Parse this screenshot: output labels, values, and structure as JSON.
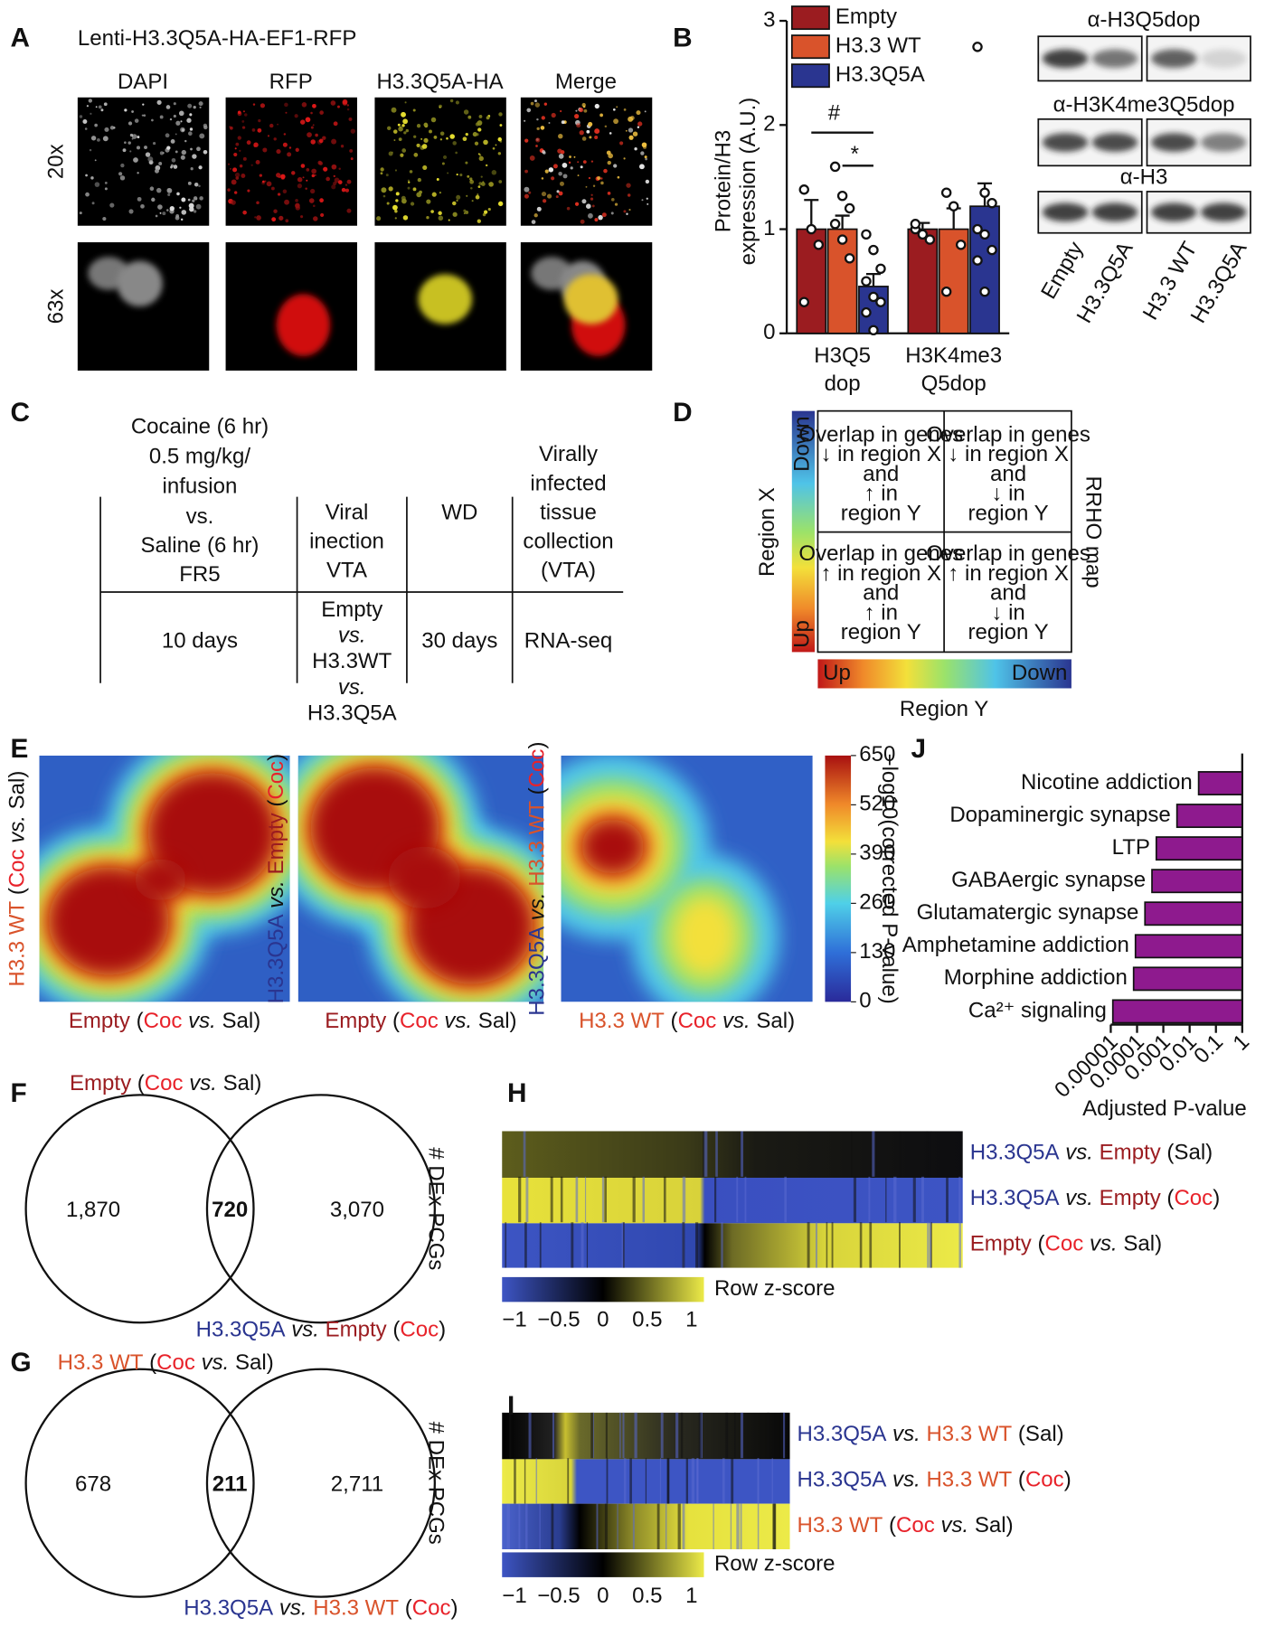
{
  "panel_labels": [
    "A",
    "B",
    "C",
    "D",
    "E",
    "F",
    "G",
    "H",
    "I",
    "J"
  ],
  "panel_a": {
    "title": "Lenti-H3.3Q5A-HA-EF1-RFP",
    "columns": [
      "DAPI",
      "RFP",
      "H3.3Q5A-HA",
      "Merge"
    ],
    "rows": [
      "20x",
      "63x"
    ]
  },
  "chart_data": [
    {
      "type": "bar",
      "orientation": "vertical",
      "ylabel": "Protein/H3\nexpression (A.U.)",
      "categories": [
        "H3Q5\ndop",
        "H3K4me3\nQ5dop"
      ],
      "series": [
        {
          "name": "Empty",
          "color": "#9b1c20",
          "values": [
            1.0,
            1.0
          ],
          "errors": [
            0.28,
            0.06
          ],
          "points": [
            [
              1.38,
              1.0,
              0.85,
              0.3
            ],
            [
              1.0,
              0.95,
              0.9,
              1.05
            ]
          ]
        },
        {
          "name": "H3.3 WT",
          "color": "#d9532b",
          "values": [
            1.0,
            1.0
          ],
          "errors": [
            0.13,
            0.2
          ],
          "points": [
            [
              1.6,
              1.32,
              1.2,
              1.05,
              0.9,
              0.72
            ],
            [
              1.35,
              1.22,
              0.85,
              0.4
            ]
          ]
        },
        {
          "name": "H3.3Q5A",
          "color": "#2a3590",
          "values": [
            0.45,
            1.22
          ],
          "errors": [
            0.12,
            0.22
          ],
          "points": [
            [
              0.95,
              0.8,
              0.62,
              0.5,
              0.35,
              0.3,
              0.2,
              0.03
            ],
            [
              2.75,
              1.35,
              1.25,
              1.0,
              0.95,
              0.8,
              0.7,
              0.4
            ]
          ]
        }
      ],
      "annotations": [
        "#",
        "*"
      ],
      "ylim": [
        0,
        3
      ],
      "yticks": [
        0,
        1,
        2,
        3
      ],
      "legend": "top-left"
    },
    {
      "type": "bar",
      "orientation": "horizontal",
      "xscale": "log",
      "categories": [
        "Nicotine addiction",
        "Dopaminergic synapse",
        "LTP",
        "GABAergic synapse",
        "Glutamatergic synapse",
        "Amphetamine addiction",
        "Morphine addiction",
        "Ca²⁺ signaling"
      ],
      "values": [
        0.022,
        0.0033,
        0.00054,
        0.00037,
        0.0002,
        8.7e-05,
        7.4e-05,
        1.2e-05
      ],
      "color": "#8e1a8e",
      "xlabel": "Adjusted P-value",
      "xlim": [
        1e-05,
        1
      ],
      "xticks": [
        1e-05,
        0.0001,
        0.001,
        0.01,
        0.1,
        1
      ]
    }
  ],
  "blot": {
    "antibodies": [
      "α-H3Q5dop",
      "α-H3K4me3Q5dop",
      "α-H3"
    ],
    "lanes": [
      {
        "text": "Empty",
        "color": "#9b1c20"
      },
      {
        "text": "H3.3Q5A",
        "color": "#2a3590"
      },
      {
        "text": "H3.3 WT",
        "color": "#d9532b"
      },
      {
        "text": "H3.3Q5A",
        "color": "#2a3590"
      }
    ]
  },
  "panel_c": {
    "cocaine": [
      "Cocaine (6 hr)",
      "0.5 mg/kg/",
      "infusion"
    ],
    "saline": [
      "vs.",
      "Saline (6 hr)",
      "FR5"
    ],
    "col2_header": [
      "Viral",
      "inection",
      "VTA"
    ],
    "col3_header": [
      "WD"
    ],
    "col4_header": [
      "Virally",
      "infected",
      "tissue",
      "collection",
      "(VTA)"
    ],
    "row": {
      "col1": "10 days",
      "col2": [
        {
          "text": "Empty",
          "color": "#9b1c20"
        },
        {
          "text": "vs.",
          "italic": true
        },
        {
          "text": "H3.3WT",
          "color": "#d9532b"
        },
        {
          "text": "vs.",
          "italic": true
        },
        {
          "text": "H3.3Q5A",
          "color": "#2a3590"
        }
      ],
      "col3": "30 days",
      "col4": "RNA-seq"
    }
  },
  "panel_d": {
    "axis_x": "Region Y",
    "axis_y": "Region X",
    "side": "RRHO map",
    "bar_x": [
      "Up",
      "Down"
    ],
    "bar_y": [
      "Down",
      "Up"
    ],
    "quadrants": [
      [
        "Overlap in genes",
        "↓ in region X",
        "and",
        "↑ in",
        "region Y"
      ],
      [
        "Overlap in genes",
        "↓ in region X",
        "and",
        "↓ in",
        "region Y"
      ],
      [
        "Overlap in genes",
        "↑ in region X",
        "and",
        "↑ in",
        "region Y"
      ],
      [
        "Overlap in genes",
        "↑ in region X",
        "and",
        "↓ in",
        "region Y"
      ]
    ]
  },
  "panel_e": {
    "maps": [
      {
        "xlabel": [
          {
            "text": "Empty",
            "color": "#9b1c20"
          },
          {
            "text": " ("
          },
          {
            "text": "Coc",
            "color": "#e8222a"
          },
          {
            "text": " vs.",
            "italic": true
          },
          {
            "text": " Sal)"
          }
        ],
        "ylabel": [
          {
            "text": "H3.3 WT",
            "color": "#d9532b"
          },
          {
            "text": " ("
          },
          {
            "text": "Coc",
            "color": "#e8222a"
          },
          {
            "text": " vs.",
            "italic": true
          },
          {
            "text": " Sal)"
          }
        ]
      },
      {
        "xlabel": [
          {
            "text": "Empty",
            "color": "#9b1c20"
          },
          {
            "text": " ("
          },
          {
            "text": "Coc",
            "color": "#e8222a"
          },
          {
            "text": " vs.",
            "italic": true
          },
          {
            "text": " Sal)"
          }
        ],
        "ylabel": [
          {
            "text": "H3.3Q5A",
            "color": "#2a3590"
          },
          {
            "text": " vs.",
            "italic": true
          },
          {
            "text": " Empty",
            "color": "#9b1c20"
          },
          {
            "text": " ("
          },
          {
            "text": "Coc",
            "color": "#e8222a"
          },
          {
            "text": ")"
          }
        ]
      },
      {
        "xlabel": [
          {
            "text": "H3.3 WT",
            "color": "#d9532b"
          },
          {
            "text": " ("
          },
          {
            "text": "Coc",
            "color": "#e8222a"
          },
          {
            "text": " vs.",
            "italic": true
          },
          {
            "text": " Sal)"
          }
        ],
        "ylabel": [
          {
            "text": "H3.3Q5A",
            "color": "#2a3590"
          },
          {
            "text": " vs.",
            "italic": true
          },
          {
            "text": " H3.3 WT",
            "color": "#d9532b"
          },
          {
            "text": " ("
          },
          {
            "text": "Coc",
            "color": "#e8222a"
          },
          {
            "text": ")"
          }
        ]
      }
    ],
    "colorbar": {
      "label": "−log10(corrected P-value)",
      "lim": [
        0,
        650
      ],
      "ticks": [
        0,
        130,
        260,
        390,
        520,
        650
      ]
    }
  },
  "panel_f": {
    "title": [
      {
        "text": "Empty",
        "color": "#9b1c20"
      },
      {
        "text": " ("
      },
      {
        "text": "Coc",
        "color": "#e8222a"
      },
      {
        "text": " vs.",
        "italic": true
      },
      {
        "text": " Sal)"
      }
    ],
    "bottom": [
      {
        "text": "H3.3Q5A",
        "color": "#2a3590"
      },
      {
        "text": " vs.",
        "italic": true
      },
      {
        "text": " Empty",
        "color": "#9b1c20"
      },
      {
        "text": " ("
      },
      {
        "text": "Coc",
        "color": "#e8222a"
      },
      {
        "text": ")"
      }
    ],
    "side": "# DEx PCGs",
    "counts": [
      "1,870",
      "720",
      "3,070"
    ]
  },
  "panel_g": {
    "title": [
      {
        "text": "H3.3 WT",
        "color": "#d9532b"
      },
      {
        "text": " ("
      },
      {
        "text": "Coc",
        "color": "#e8222a"
      },
      {
        "text": " vs.",
        "italic": true
      },
      {
        "text": " Sal)"
      }
    ],
    "bottom": [
      {
        "text": "H3.3Q5A",
        "color": "#2a3590"
      },
      {
        "text": " vs.",
        "italic": true
      },
      {
        "text": " H3.3 WT",
        "color": "#d9532b"
      },
      {
        "text": " ("
      },
      {
        "text": "Coc",
        "color": "#e8222a"
      },
      {
        "text": ")"
      }
    ],
    "side": "# DEx PCGs",
    "counts": [
      "678",
      "211",
      "2,711"
    ]
  },
  "panel_h": {
    "rows": [
      [
        {
          "text": "H3.3Q5A",
          "color": "#2a3590"
        },
        {
          "text": " vs.",
          "italic": true
        },
        {
          "text": " Empty",
          "color": "#9b1c20"
        },
        {
          "text": " (Sal)"
        }
      ],
      [
        {
          "text": "H3.3Q5A",
          "color": "#2a3590"
        },
        {
          "text": " vs.",
          "italic": true
        },
        {
          "text": " Empty",
          "color": "#9b1c20"
        },
        {
          "text": " ("
        },
        {
          "text": "Coc",
          "color": "#e8222a"
        },
        {
          "text": ")"
        }
      ],
      [
        {
          "text": "Empty",
          "color": "#9b1c20"
        },
        {
          "text": " ("
        },
        {
          "text": "Coc",
          "color": "#e8222a"
        },
        {
          "text": " vs.",
          "italic": true
        },
        {
          "text": " Sal)"
        }
      ]
    ],
    "colorbar": {
      "label": "Row z-score",
      "lim": [
        -1,
        1
      ],
      "ticks": [
        {
          "value": -1,
          "label": "−1"
        },
        {
          "value": -0.5,
          "label": "−0.5"
        },
        0,
        0.5,
        1
      ]
    }
  },
  "panel_i": {
    "rows": [
      [
        {
          "text": "H3.3Q5A",
          "color": "#2a3590"
        },
        {
          "text": " vs.",
          "italic": true
        },
        {
          "text": " H3.3 WT",
          "color": "#d9532b"
        },
        {
          "text": " (Sal)"
        }
      ],
      [
        {
          "text": "H3.3Q5A",
          "color": "#2a3590"
        },
        {
          "text": " vs.",
          "italic": true
        },
        {
          "text": " H3.3 WT",
          "color": "#d9532b"
        },
        {
          "text": " ("
        },
        {
          "text": "Coc",
          "color": "#e8222a"
        },
        {
          "text": ")"
        }
      ],
      [
        {
          "text": "H3.3 WT",
          "color": "#d9532b"
        },
        {
          "text": " ("
        },
        {
          "text": "Coc",
          "color": "#e8222a"
        },
        {
          "text": " vs.",
          "italic": true
        },
        {
          "text": " Sal)"
        }
      ]
    ],
    "colorbar": {
      "label": "Row z-score",
      "lim": [
        -1,
        1
      ],
      "ticks": [
        {
          "value": -1,
          "label": "−1"
        },
        {
          "value": -0.5,
          "label": "−0.5"
        },
        0,
        0.5,
        1
      ]
    }
  }
}
